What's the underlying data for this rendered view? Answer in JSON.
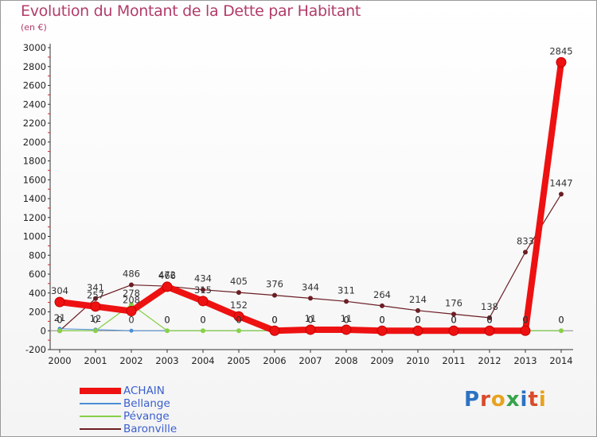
{
  "title": "Evolution du Montant de la Dette par Habitant",
  "unit_label": "(en €)",
  "logo": {
    "text": "Proxiti",
    "colors": [
      "#2d72c2",
      "#d94a2b",
      "#e8a21d",
      "#36a34b",
      "#2d72c2",
      "#d94a2b",
      "#e8a21d"
    ]
  },
  "chart_data": {
    "type": "line",
    "x": [
      2000,
      2001,
      2002,
      2003,
      2004,
      2005,
      2006,
      2007,
      2008,
      2009,
      2010,
      2011,
      2012,
      2013,
      2014
    ],
    "ylim": [
      -200,
      3000
    ],
    "yticks": [
      -200,
      0,
      200,
      400,
      600,
      800,
      1000,
      1200,
      1400,
      1600,
      1800,
      2000,
      2200,
      2400,
      2600,
      2800,
      3000
    ],
    "grid": false,
    "legend_position": "bottom-left",
    "series": [
      {
        "name": "ACHAIN",
        "color": "#ee1111",
        "values": [
          304,
          257,
          208,
          466,
          315,
          152,
          0,
          11,
          11,
          0,
          0,
          0,
          0,
          0,
          2845
        ],
        "labels": [
          "304",
          "257",
          "208",
          "466",
          "315",
          "152",
          "0",
          "11",
          "11",
          "0",
          "0",
          "0",
          "0",
          "0",
          "2845"
        ]
      },
      {
        "name": "Bellange",
        "color": "#4a8ed6",
        "values": [
          21,
          12,
          0,
          0,
          0,
          0,
          0,
          0,
          0,
          0,
          0,
          0,
          0,
          0,
          0
        ],
        "labels": [
          "21",
          "12",
          "0",
          "0",
          "0",
          "0",
          "0",
          "0",
          "0",
          "0",
          "0",
          "0",
          "0",
          "0",
          "0"
        ]
      },
      {
        "name": "Pévange",
        "color": "#88d048",
        "values": [
          0,
          0,
          278,
          0,
          0,
          0,
          0,
          0,
          0,
          0,
          0,
          0,
          0,
          0,
          0
        ],
        "labels": [
          "0",
          "0",
          "278",
          "0",
          "0",
          "0",
          "0",
          "0",
          "0",
          "0",
          "0",
          "0",
          "0",
          "0",
          "0"
        ]
      },
      {
        "name": "Baronville",
        "color": "#6b1e24",
        "values": [
          0,
          341,
          486,
          472,
          434,
          405,
          376,
          344,
          311,
          264,
          214,
          176,
          138,
          833,
          1447
        ],
        "labels": [
          "0",
          "341",
          "486",
          "472",
          "434",
          "405",
          "376",
          "344",
          "311",
          "264",
          "214",
          "176",
          "138",
          "833",
          "1447"
        ]
      }
    ]
  }
}
